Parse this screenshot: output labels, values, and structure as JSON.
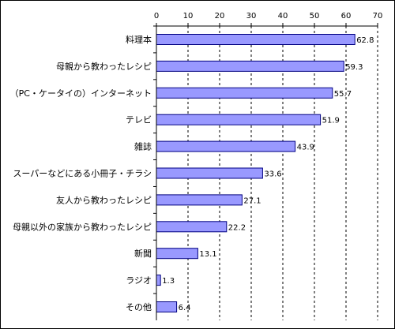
{
  "chart_data": {
    "type": "bar",
    "orientation": "horizontal",
    "categories": [
      "料理本",
      "母親から教わったレシピ",
      "（PC・ケータイの）インターネット",
      "テレビ",
      "雑誌",
      "スーパーなどにある小冊子・チラシ",
      "友人から教わったレシピ",
      "母親以外の家族から教わったレシピ",
      "新聞",
      "ラジオ",
      "その他"
    ],
    "values": [
      62.8,
      59.3,
      55.7,
      51.9,
      43.9,
      33.6,
      27.1,
      22.2,
      13.1,
      1.3,
      6.4
    ],
    "value_labels": [
      "62.8",
      "59.3",
      "55.7",
      "51.9",
      "43.9",
      "33.6",
      "27.1",
      "22.2",
      "13.1",
      "1.3",
      "6.4"
    ],
    "xlim": [
      0,
      70
    ],
    "xticks": [
      "0",
      "10",
      "20",
      "30",
      "40",
      "50",
      "60",
      "70"
    ],
    "x_axis_position": "top",
    "grid": "vertical dashed",
    "legend": "none",
    "colors": {
      "bar": "#9999ff",
      "bar_edge": "#000080",
      "grid": "#000000"
    }
  }
}
